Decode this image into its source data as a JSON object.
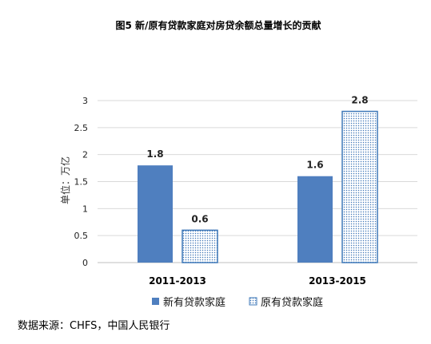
{
  "chart_data": {
    "type": "bar",
    "title": "图5 新/原有贷款家庭对房贷余额总量增长的贡献",
    "ylabel": "单位：万亿",
    "xlabel": "",
    "categories": [
      "2011-2013",
      "2013-2015"
    ],
    "series": [
      {
        "name": "新有贷款家庭",
        "values": [
          1.8,
          1.6
        ],
        "color": "#4f7fbf",
        "pattern": "solid"
      },
      {
        "name": "原有贷款家庭",
        "values": [
          0.6,
          2.8
        ],
        "color": "#3f78b8",
        "pattern": "dotted"
      }
    ],
    "ylim": [
      0,
      3
    ],
    "yticks": [
      "0",
      "0.5",
      "1",
      "1.5",
      "2",
      "2.5",
      "3"
    ],
    "data_labels": [
      [
        "1.8",
        "0.6"
      ],
      [
        "1.6",
        "2.8"
      ]
    ],
    "grid": true,
    "legend_position": "bottom"
  },
  "source": "数据来源：CHFS，中国人民银行"
}
